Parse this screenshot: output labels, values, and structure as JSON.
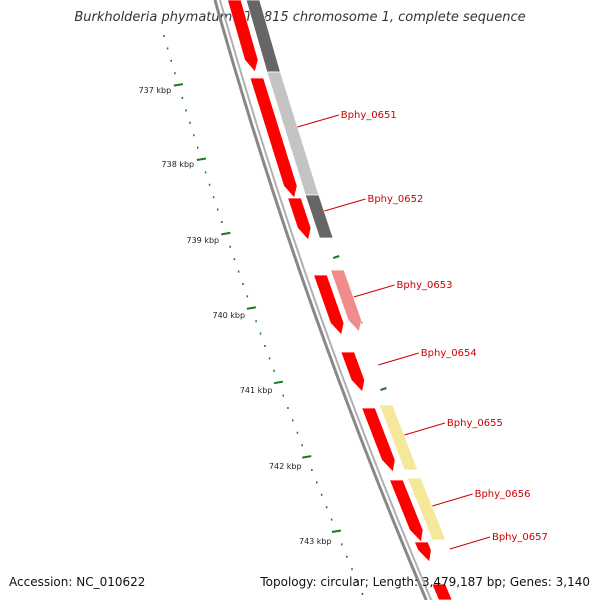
{
  "title": "Burkholderia phymatum STM815 chromosome 1, complete sequence",
  "accession": "Accession: NC_010622",
  "summary": "Topology: circular; Length: 3,479,187 bp; Genes: 3,140",
  "colors": {
    "cds": "#ff0000",
    "backbone": "#888888",
    "tick": "#1a7a1a",
    "label": "#cc0000",
    "gray_dark": "#666666",
    "gray_light": "#c4c4c4",
    "pink": "#f08c8c",
    "yellow": "#f5e89a"
  },
  "kbp_ticks": [
    "737 kbp",
    "738 kbp",
    "739 kbp",
    "740 kbp",
    "741 kbp",
    "742 kbp",
    "743 kbp"
  ],
  "gene_labels": [
    "Bphy_0651",
    "Bphy_0652",
    "Bphy_0653",
    "Bphy_0654",
    "Bphy_0655",
    "Bphy_0656",
    "Bphy_0657"
  ]
}
